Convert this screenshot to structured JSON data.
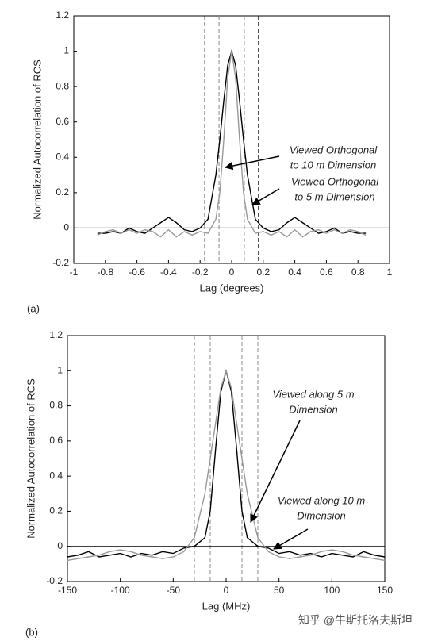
{
  "chart_data": [
    {
      "type": "line",
      "panel_label": "(a)",
      "x_label": "Lag (degrees)",
      "y_label": "Normalized Autocorrelation of RCS",
      "x": [
        -0.85,
        -0.8,
        -0.75,
        -0.7,
        -0.65,
        -0.6,
        -0.55,
        -0.5,
        -0.45,
        -0.4,
        -0.35,
        -0.3,
        -0.25,
        -0.2,
        -0.15,
        -0.1,
        -0.075,
        -0.05,
        -0.025,
        0,
        0.025,
        0.05,
        0.075,
        0.1,
        0.15,
        0.2,
        0.25,
        0.3,
        0.35,
        0.4,
        0.45,
        0.5,
        0.55,
        0.6,
        0.65,
        0.7,
        0.75,
        0.8,
        0.85
      ],
      "series": [
        {
          "color": "#000000",
          "values": [
            -0.03,
            -0.03,
            -0.02,
            -0.03,
            0.0,
            -0.02,
            -0.03,
            0.0,
            0.03,
            0.06,
            0.03,
            -0.01,
            -0.02,
            0.0,
            0.05,
            0.3,
            0.5,
            0.72,
            0.92,
            1,
            0.92,
            0.72,
            0.5,
            0.3,
            0.05,
            0.0,
            -0.02,
            -0.01,
            0.03,
            0.06,
            0.03,
            0.0,
            -0.03,
            -0.02,
            0.0,
            -0.03,
            -0.02,
            -0.03,
            -0.03
          ]
        },
        {
          "color": "#999999",
          "values": [
            -0.04,
            -0.02,
            -0.01,
            -0.03,
            -0.01,
            -0.03,
            -0.01,
            -0.02,
            -0.05,
            -0.01,
            -0.05,
            -0.02,
            -0.04,
            -0.02,
            -0.03,
            0.05,
            0.2,
            0.5,
            0.85,
            1,
            0.85,
            0.5,
            0.2,
            0.05,
            -0.03,
            -0.02,
            -0.04,
            -0.02,
            -0.05,
            -0.01,
            -0.05,
            -0.02,
            -0.01,
            -0.03,
            -0.01,
            -0.03,
            -0.01,
            -0.02,
            -0.04
          ]
        }
      ],
      "reference_lines": [
        {
          "x": -0.17,
          "color": "#000000"
        },
        {
          "x": -0.08,
          "color": "#888888"
        },
        {
          "x": 0.08,
          "color": "#888888"
        },
        {
          "x": 0.17,
          "color": "#000000"
        }
      ],
      "annotations": [
        {
          "lines": [
            "Viewed Orthogonal",
            "to 10 m Dimension"
          ]
        },
        {
          "lines": [
            "Viewed Orthogonal",
            "to 5 m Dimension"
          ]
        }
      ],
      "xlim": [
        -1,
        1
      ],
      "xticks": [
        -1,
        -0.8,
        -0.6,
        -0.4,
        -0.2,
        0,
        0.2,
        0.4,
        0.6,
        0.8,
        1
      ],
      "ylim": [
        -0.2,
        1.2
      ],
      "yticks": [
        -0.2,
        0,
        0.2,
        0.4,
        0.6,
        0.8,
        1,
        1.2
      ],
      "grid": false
    },
    {
      "type": "line",
      "panel_label": "(b)",
      "x_label": "Lag (MHz)",
      "y_label": "Normalized Autocorrelation of RCS",
      "x": [
        -150,
        -140,
        -130,
        -120,
        -110,
        -100,
        -90,
        -80,
        -70,
        -60,
        -50,
        -40,
        -30,
        -20,
        -15,
        -10,
        -5,
        0,
        5,
        10,
        15,
        20,
        30,
        40,
        50,
        60,
        70,
        80,
        90,
        100,
        110,
        120,
        130,
        140,
        150
      ],
      "series": [
        {
          "color": "#000000",
          "values": [
            -0.06,
            -0.05,
            -0.03,
            -0.06,
            -0.05,
            -0.04,
            -0.06,
            -0.04,
            -0.05,
            -0.03,
            -0.04,
            -0.01,
            0.0,
            0.05,
            0.2,
            0.55,
            0.88,
            1,
            0.88,
            0.55,
            0.2,
            0.05,
            0.0,
            -0.01,
            -0.04,
            -0.03,
            -0.05,
            -0.04,
            -0.06,
            -0.04,
            -0.05,
            -0.06,
            -0.03,
            -0.05,
            -0.06
          ]
        },
        {
          "color": "#999999",
          "values": [
            -0.08,
            -0.07,
            -0.06,
            -0.05,
            -0.03,
            -0.02,
            -0.03,
            -0.05,
            -0.06,
            -0.07,
            -0.06,
            -0.03,
            0.05,
            0.3,
            0.5,
            0.7,
            0.9,
            1,
            0.9,
            0.7,
            0.5,
            0.3,
            0.05,
            -0.03,
            -0.06,
            -0.07,
            -0.06,
            -0.05,
            -0.03,
            -0.02,
            -0.03,
            -0.05,
            -0.06,
            -0.07,
            -0.08
          ]
        }
      ],
      "reference_lines": [
        {
          "x": -30,
          "color": "#888888"
        },
        {
          "x": -15,
          "color": "#888888"
        },
        {
          "x": 15,
          "color": "#888888"
        },
        {
          "x": 30,
          "color": "#888888"
        }
      ],
      "annotations": [
        {
          "lines": [
            "Viewed along 5 m",
            "Dimension"
          ]
        },
        {
          "lines": [
            "Viewed along 10 m",
            "Dimension"
          ]
        }
      ],
      "xlim": [
        -150,
        150
      ],
      "xticks": [
        -150,
        -100,
        -50,
        0,
        50,
        100,
        150
      ],
      "ylim": [
        -0.2,
        1.2
      ],
      "yticks": [
        -0.2,
        0,
        0.2,
        0.4,
        0.6,
        0.8,
        1,
        1.2
      ],
      "grid": false
    }
  ],
  "watermark": "知乎 @牛斯托洛夫斯坦"
}
